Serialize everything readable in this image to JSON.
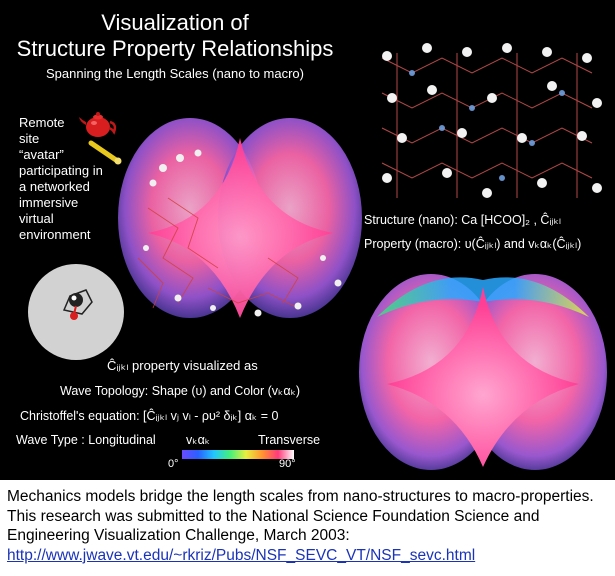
{
  "title": {
    "line1": "Visualization of",
    "line2": "Structure Property Relationships",
    "subtitle": "Spanning the Length Scales (nano to macro)"
  },
  "remote_avatar_text": [
    "Remote",
    "site",
    "“avatar”",
    "participating in",
    "a networked",
    "immersive",
    "virtual",
    "environment"
  ],
  "structure_label": "Structure (nano): Ca [HCOO]₂ , Ĉᵢⱼₖₗ",
  "property_label": "Property (macro): υ(Ĉᵢⱼₖₗ) and vₖαₖ(Ĉᵢⱼₖₗ)",
  "captions": {
    "cijkl": "Ĉᵢⱼₖₗ  property visualized as",
    "topology": "Wave Topology: Shape (υ) and Color (vₖαₖ)",
    "christoffel": "Christoffel's equation: [Ĉᵢⱼₖₗ vⱼ vₗ - ρυ² δᵢₖ] αₖ = 0"
  },
  "wave_type": {
    "label": "Wave Type : Longitudinal",
    "vk": "vₖαₖ",
    "transverse": "Transverse",
    "min": "0°",
    "max": "90°"
  },
  "footer": {
    "text": "Mechanics models bridge the length scales from nano-structures to macro-properties. This research was submitted to the National Science Foundation Science and Engineering Visualization Challenge, March 2003:",
    "url": "http://www.jwave.vt.edu/~rkriz/Pubs/NSF_SEVC_VT/NSF_sevc.html"
  },
  "colors": {
    "background": "#000000",
    "surface_pink": "#ff5fae",
    "surface_purple": "#8a4bd8",
    "link": "#1a33b8"
  }
}
